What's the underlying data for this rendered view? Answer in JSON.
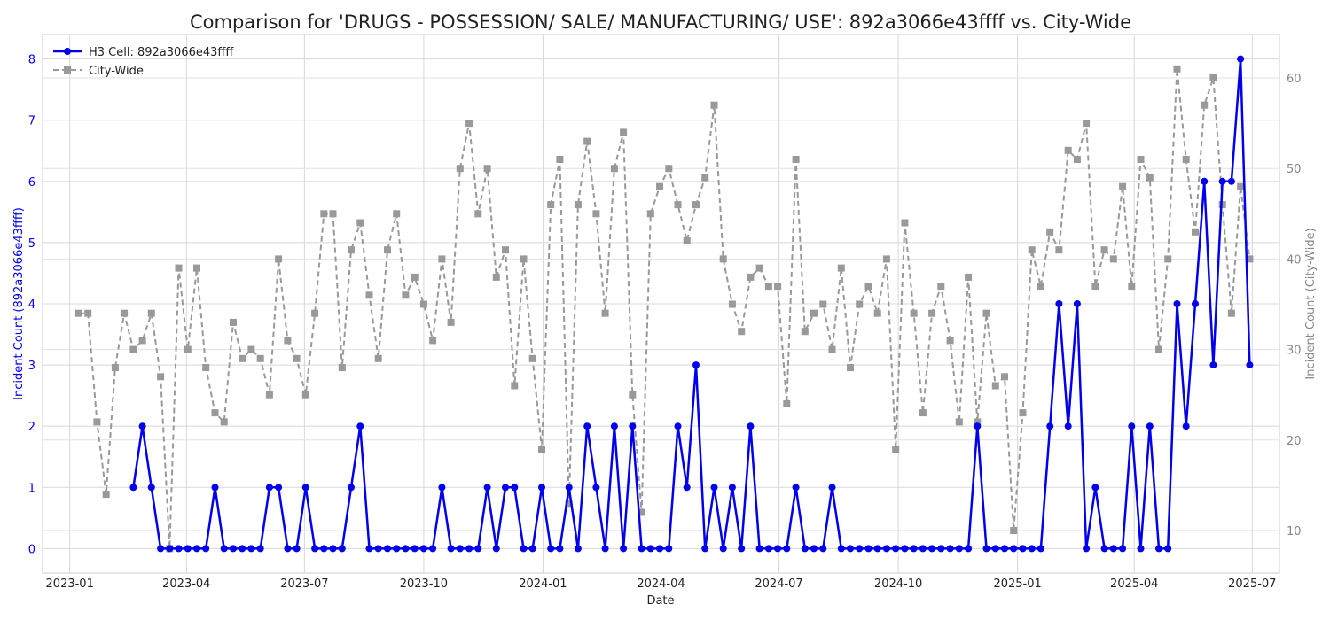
{
  "chart_data": {
    "type": "line",
    "title": "Comparison for 'DRUGS - POSSESSION/ SALE/ MANUFACTURING/ USE': 892a3066e43ffff vs. City-Wide",
    "xlabel": "Date",
    "ylabel_left": "Incident Count (892a3066e43ffff)",
    "ylabel_right": "Incident Count (City-Wide)",
    "x_ticks": [
      "2023-01",
      "2023-04",
      "2023-07",
      "2023-10",
      "2024-01",
      "2024-04",
      "2024-07",
      "2024-10",
      "2025-01",
      "2025-04",
      "2025-07"
    ],
    "y_left_ticks": [
      0,
      1,
      2,
      3,
      4,
      5,
      6,
      7,
      8
    ],
    "y_right_ticks": [
      10,
      20,
      30,
      40,
      50,
      60
    ],
    "xlim": [
      "2022-12-11",
      "2025-07-22"
    ],
    "ylim_left": [
      -0.4,
      8.4
    ],
    "ylim_right": [
      5.3,
      64.8
    ],
    "grid": true,
    "legend_position": "top-left",
    "colors": {
      "h3": "#0000ee",
      "city": "#999999",
      "left_axis_label": "#0000ee",
      "right_axis_label": "#888888"
    },
    "series": [
      {
        "name": "H3 Cell: 892a3066e43ffff",
        "axis": "left",
        "style": "solid",
        "marker": "circle",
        "x": [
          "2023-02-19",
          "2023-02-26",
          "2023-03-05",
          "2023-03-12",
          "2023-03-19",
          "2023-03-26",
          "2023-04-02",
          "2023-04-09",
          "2023-04-16",
          "2023-04-23",
          "2023-04-30",
          "2023-05-07",
          "2023-05-14",
          "2023-05-21",
          "2023-05-28",
          "2023-06-04",
          "2023-06-11",
          "2023-06-18",
          "2023-06-25",
          "2023-07-02",
          "2023-07-09",
          "2023-07-16",
          "2023-07-23",
          "2023-07-30",
          "2023-08-06",
          "2023-08-13",
          "2023-08-20",
          "2023-08-27",
          "2023-09-03",
          "2023-09-10",
          "2023-09-17",
          "2023-09-24",
          "2023-10-01",
          "2023-10-08",
          "2023-10-15",
          "2023-10-22",
          "2023-10-29",
          "2023-11-05",
          "2023-11-12",
          "2023-11-19",
          "2023-11-26",
          "2023-12-03",
          "2023-12-10",
          "2023-12-17",
          "2023-12-24",
          "2023-12-31",
          "2024-01-07",
          "2024-01-14",
          "2024-01-21",
          "2024-01-28",
          "2024-02-04",
          "2024-02-11",
          "2024-02-18",
          "2024-02-25",
          "2024-03-03",
          "2024-03-10",
          "2024-03-17",
          "2024-03-24",
          "2024-03-31",
          "2024-04-07",
          "2024-04-14",
          "2024-04-21",
          "2024-04-28",
          "2024-05-05",
          "2024-05-12",
          "2024-05-19",
          "2024-05-26",
          "2024-06-02",
          "2024-06-09",
          "2024-06-16",
          "2024-06-23",
          "2024-06-30",
          "2024-07-07",
          "2024-07-14",
          "2024-07-21",
          "2024-07-28",
          "2024-08-04",
          "2024-08-11",
          "2024-08-18",
          "2024-08-25",
          "2024-09-01",
          "2024-09-08",
          "2024-09-15",
          "2024-09-22",
          "2024-09-29",
          "2024-10-06",
          "2024-10-13",
          "2024-10-20",
          "2024-10-27",
          "2024-11-03",
          "2024-11-10",
          "2024-11-17",
          "2024-11-24",
          "2024-12-01",
          "2024-12-08",
          "2024-12-15",
          "2024-12-22",
          "2024-12-29",
          "2025-01-05",
          "2025-01-12",
          "2025-01-19",
          "2025-01-26",
          "2025-02-02",
          "2025-02-09",
          "2025-02-16",
          "2025-02-23",
          "2025-03-02",
          "2025-03-09",
          "2025-03-16",
          "2025-03-23",
          "2025-03-30",
          "2025-04-06",
          "2025-04-13",
          "2025-04-20",
          "2025-04-27",
          "2025-05-04",
          "2025-05-11",
          "2025-05-18",
          "2025-05-25",
          "2025-06-01",
          "2025-06-08",
          "2025-06-15",
          "2025-06-22",
          "2025-06-29"
        ],
        "values": [
          1,
          2,
          1,
          0,
          0,
          0,
          0,
          0,
          0,
          1,
          0,
          0,
          0,
          0,
          0,
          1,
          1,
          0,
          0,
          1,
          0,
          0,
          0,
          0,
          1,
          2,
          0,
          0,
          0,
          0,
          0,
          0,
          0,
          0,
          1,
          0,
          0,
          0,
          0,
          1,
          0,
          1,
          1,
          0,
          0,
          1,
          0,
          0,
          1,
          0,
          2,
          1,
          0,
          2,
          0,
          2,
          0,
          0,
          0,
          0,
          2,
          1,
          3,
          0,
          1,
          0,
          1,
          0,
          2,
          0,
          0,
          0,
          0,
          1,
          0,
          0,
          0,
          1,
          0,
          0,
          0,
          0,
          0,
          0,
          0,
          0,
          0,
          0,
          0,
          0,
          0,
          0,
          0,
          2,
          0,
          0,
          0,
          0,
          0,
          0,
          0,
          2,
          4,
          2,
          4,
          0,
          1,
          0,
          0,
          0,
          2,
          0,
          2,
          0,
          0,
          4,
          2,
          4,
          6,
          3,
          6,
          6,
          8,
          3
        ]
      },
      {
        "name": "City-Wide",
        "axis": "right",
        "style": "dashed",
        "marker": "square",
        "x": [
          "2023-01-08",
          "2023-01-15",
          "2023-01-22",
          "2023-01-29",
          "2023-02-05",
          "2023-02-12",
          "2023-02-19",
          "2023-02-26",
          "2023-03-05",
          "2023-03-12",
          "2023-03-19",
          "2023-03-26",
          "2023-04-02",
          "2023-04-09",
          "2023-04-16",
          "2023-04-23",
          "2023-04-30",
          "2023-05-07",
          "2023-05-14",
          "2023-05-21",
          "2023-05-28",
          "2023-06-04",
          "2023-06-11",
          "2023-06-18",
          "2023-06-25",
          "2023-07-02",
          "2023-07-09",
          "2023-07-16",
          "2023-07-23",
          "2023-07-30",
          "2023-08-06",
          "2023-08-13",
          "2023-08-20",
          "2023-08-27",
          "2023-09-03",
          "2023-09-10",
          "2023-09-17",
          "2023-09-24",
          "2023-10-01",
          "2023-10-08",
          "2023-10-15",
          "2023-10-22",
          "2023-10-29",
          "2023-11-05",
          "2023-11-12",
          "2023-11-19",
          "2023-11-26",
          "2023-12-03",
          "2023-12-10",
          "2023-12-17",
          "2023-12-24",
          "2023-12-31",
          "2024-01-07",
          "2024-01-14",
          "2024-01-21",
          "2024-01-28",
          "2024-02-04",
          "2024-02-11",
          "2024-02-18",
          "2024-02-25",
          "2024-03-03",
          "2024-03-10",
          "2024-03-17",
          "2024-03-24",
          "2024-03-31",
          "2024-04-07",
          "2024-04-14",
          "2024-04-21",
          "2024-04-28",
          "2024-05-05",
          "2024-05-12",
          "2024-05-19",
          "2024-05-26",
          "2024-06-02",
          "2024-06-09",
          "2024-06-16",
          "2024-06-23",
          "2024-06-30",
          "2024-07-07",
          "2024-07-14",
          "2024-07-21",
          "2024-07-28",
          "2024-08-04",
          "2024-08-11",
          "2024-08-18",
          "2024-08-25",
          "2024-09-01",
          "2024-09-08",
          "2024-09-15",
          "2024-09-22",
          "2024-09-29",
          "2024-10-06",
          "2024-10-13",
          "2024-10-20",
          "2024-10-27",
          "2024-11-03",
          "2024-11-10",
          "2024-11-17",
          "2024-11-24",
          "2024-12-01",
          "2024-12-08",
          "2024-12-15",
          "2024-12-22",
          "2024-12-29",
          "2025-01-05",
          "2025-01-12",
          "2025-01-19",
          "2025-01-26",
          "2025-02-02",
          "2025-02-09",
          "2025-02-16",
          "2025-02-23",
          "2025-03-02",
          "2025-03-09",
          "2025-03-16",
          "2025-03-23",
          "2025-03-30",
          "2025-04-06",
          "2025-04-13",
          "2025-04-20",
          "2025-04-27",
          "2025-05-04",
          "2025-05-11",
          "2025-05-18",
          "2025-05-25",
          "2025-06-01",
          "2025-06-08",
          "2025-06-15",
          "2025-06-22",
          "2025-06-29"
        ],
        "values": [
          34,
          34,
          22,
          14,
          28,
          34,
          30,
          31,
          34,
          27,
          8,
          39,
          30,
          39,
          28,
          23,
          22,
          33,
          29,
          30,
          29,
          25,
          40,
          31,
          29,
          25,
          34,
          45,
          45,
          28,
          41,
          44,
          36,
          29,
          41,
          45,
          36,
          38,
          35,
          31,
          40,
          33,
          50,
          55,
          45,
          50,
          38,
          41,
          26,
          40,
          29,
          19,
          46,
          51,
          13,
          46,
          53,
          45,
          34,
          50,
          54,
          25,
          12,
          45,
          48,
          50,
          46,
          42,
          46,
          49,
          57,
          40,
          35,
          32,
          38,
          39,
          37,
          37,
          24,
          51,
          32,
          34,
          35,
          30,
          39,
          28,
          35,
          37,
          34,
          40,
          19,
          44,
          34,
          23,
          34,
          37,
          31,
          22,
          38,
          22,
          34,
          26,
          27,
          10,
          23,
          41,
          37,
          43,
          41,
          52,
          51,
          55,
          37,
          41,
          40,
          48,
          37,
          51,
          49,
          30,
          40,
          61,
          51,
          43,
          57,
          60,
          46,
          34,
          48,
          40
        ]
      }
    ]
  }
}
